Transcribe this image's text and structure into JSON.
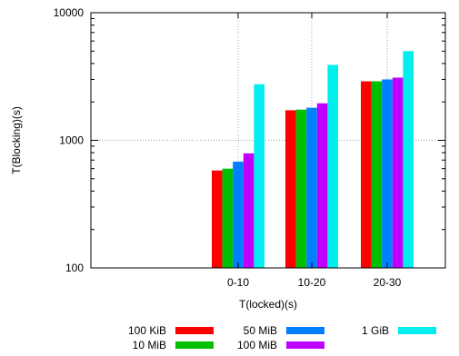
{
  "chart_data": {
    "type": "bar",
    "title": "",
    "xlabel": "T(locked)(s)",
    "ylabel": "T(Blocking)(s)",
    "y_scale": "log",
    "ylim": [
      100,
      10000
    ],
    "y_ticks": [
      {
        "value": 100,
        "label": "100"
      },
      {
        "value": 1000,
        "label": "1000"
      },
      {
        "value": 10000,
        "label": "10000"
      }
    ],
    "categories": [
      "0-10",
      "10-20",
      "20-30"
    ],
    "grid": true,
    "legend_position": "bottom",
    "series": [
      {
        "name": "100 KiB",
        "color": "#ff0000",
        "values": [
          580,
          1720,
          2900
        ]
      },
      {
        "name": "10 MiB",
        "color": "#00c000",
        "values": [
          600,
          1740,
          2900
        ]
      },
      {
        "name": "50 MiB",
        "color": "#0080ff",
        "values": [
          680,
          1800,
          3000
        ]
      },
      {
        "name": "100 MiB",
        "color": "#c000ff",
        "values": [
          790,
          1950,
          3100
        ]
      },
      {
        "name": "1 GiB",
        "color": "#00eeee",
        "values": [
          2750,
          3900,
          5000
        ]
      }
    ]
  }
}
